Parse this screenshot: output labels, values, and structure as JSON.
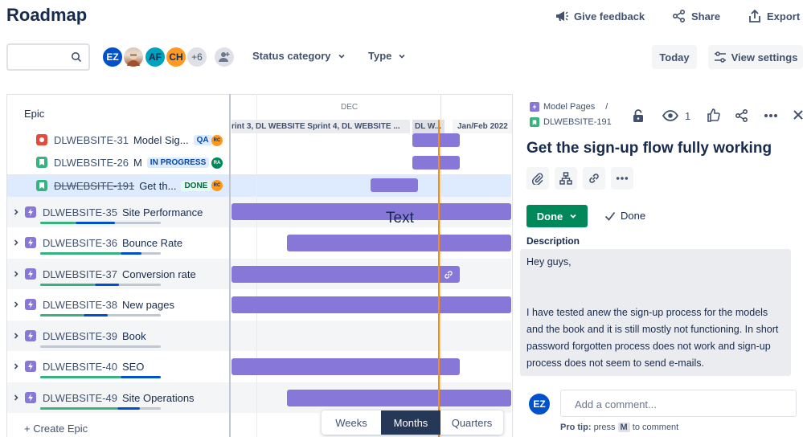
{
  "header": {
    "title": "Roadmap",
    "feedback_label": "Give feedback",
    "share_label": "Share",
    "export_label": "Export"
  },
  "toolbar": {
    "search_placeholder": "",
    "avatars": [
      "EZ",
      "",
      "AF",
      "CH"
    ],
    "more_count": "+6",
    "status_filter": "Status category",
    "type_filter": "Type",
    "today_label": "Today",
    "view_settings_label": "View settings"
  },
  "timeline": {
    "epic_header": "Epic",
    "month": "DEC",
    "sprint_1": "rint 3, DL WEBSITE Sprint 4, DL WEBSITE ...",
    "sprint_2": "DL W...",
    "sprint_3": "Jan/Feb 2022",
    "overlay_text": "Text",
    "view_modes": [
      "Weeks",
      "Months",
      "Quarters"
    ],
    "active_view": "Months",
    "create_epic": "+ Create Epic"
  },
  "rows": [
    {
      "key": "DLWEBSITE-31",
      "title": "Model Sig...",
      "badge": "QA",
      "assignee": "RC",
      "type": "bug",
      "child": true
    },
    {
      "key": "DLWEBSITE-26",
      "title": "M",
      "badge": "IN PROGRESS",
      "assignee": "RA",
      "type": "story",
      "child": true
    },
    {
      "key": "DLWEBSITE-191",
      "title": "Get th...",
      "badge": "DONE",
      "assignee": "RC",
      "type": "story",
      "child": true,
      "selected": true
    },
    {
      "key": "DLWEBSITE-35",
      "title": "Site Performance",
      "type": "epic"
    },
    {
      "key": "DLWEBSITE-36",
      "title": "Bounce Rate",
      "type": "epic"
    },
    {
      "key": "DLWEBSITE-37",
      "title": "Conversion rate",
      "type": "epic"
    },
    {
      "key": "DLWEBSITE-38",
      "title": "New pages",
      "type": "epic"
    },
    {
      "key": "DLWEBSITE-39",
      "title": "Book",
      "type": "epic"
    },
    {
      "key": "DLWEBSITE-40",
      "title": "SEO",
      "type": "epic"
    },
    {
      "key": "DLWEBSITE-49",
      "title": "Site Operations",
      "type": "epic"
    }
  ],
  "detail": {
    "parent": "Model Pages",
    "separator": "/",
    "issue_key": "DLWEBSITE-191",
    "watchers": "1",
    "title": "Get the sign-up flow fully working",
    "status_button": "Done",
    "resolution": "Done",
    "description_label": "Description",
    "description_lines": [
      "Hey guys,",
      "",
      "I have tested anew the sign-up process for the models",
      "and the book and it is still mostly not functioning. In short",
      "password forgotten process does not work and sign-up",
      "process does not seem to send e-mails."
    ],
    "commenter": "EZ",
    "comment_placeholder": "Add a comment...",
    "protip_prefix": "Pro tip:",
    "protip_press": "press",
    "protip_key": "M",
    "protip_suffix": "to comment"
  },
  "colors": {
    "epic_bar": "#8777d9",
    "today_line": "#ff8b00",
    "done_green": "#00875a"
  }
}
